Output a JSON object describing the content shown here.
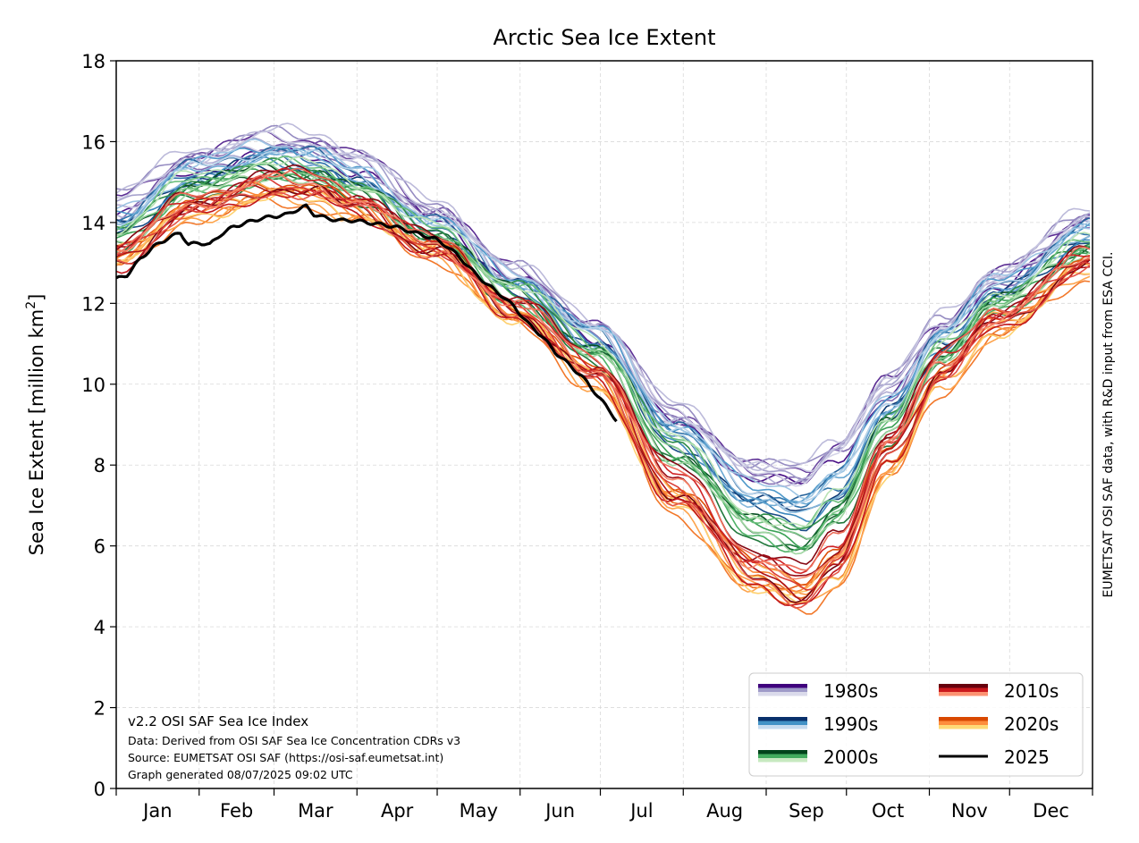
{
  "chart_data": {
    "type": "line",
    "title": "Arctic Sea Ice Extent",
    "ylabel_main": "Sea Ice Extent [million km",
    "ylabel_sup": "2",
    "ylabel_close": "]",
    "xlabel": "",
    "ylim": [
      0,
      18
    ],
    "xlim": [
      1,
      366
    ],
    "yticks": [
      0,
      2,
      4,
      6,
      8,
      10,
      12,
      14,
      16,
      18
    ],
    "months": [
      "Jan",
      "Feb",
      "Mar",
      "Apr",
      "May",
      "Jun",
      "Jul",
      "Aug",
      "Sep",
      "Oct",
      "Nov",
      "Dec"
    ],
    "month_starts": [
      1,
      32,
      60,
      91,
      121,
      152,
      182,
      213,
      244,
      274,
      305,
      335
    ],
    "grid": true,
    "legend_position": "lower-right",
    "legend": [
      {
        "label": "1980s",
        "colors": [
          "#3f007d",
          "#9e9ac8",
          "#dadaeb"
        ]
      },
      {
        "label": "2010s",
        "colors": [
          "#67000d",
          "#cb181d",
          "#fc9272"
        ]
      },
      {
        "label": "1990s",
        "colors": [
          "#08306b",
          "#4292c6",
          "#c6dbef"
        ]
      },
      {
        "label": "2020s",
        "colors": [
          "#d94801",
          "#fd8d3c",
          "#fed976"
        ]
      },
      {
        "label": "2000s",
        "colors": [
          "#00441b",
          "#41ab5d",
          "#c7e9c0"
        ]
      },
      {
        "label": "2025",
        "colors": [
          "#000000"
        ]
      }
    ],
    "decade_profiles": {
      "x": [
        1,
        30,
        60,
        75,
        90,
        120,
        150,
        180,
        210,
        240,
        258,
        270,
        290,
        310,
        330,
        366
      ],
      "1980s_top": [
        14.9,
        15.9,
        16.4,
        16.3,
        15.9,
        14.6,
        13.0,
        11.7,
        9.6,
        8.1,
        8.1,
        8.7,
        10.3,
        11.8,
        12.9,
        14.4
      ],
      "1980s_bottom": [
        14.0,
        15.2,
        15.6,
        15.5,
        15.2,
        14.0,
        12.5,
        11.1,
        8.9,
        7.6,
        7.4,
        8.1,
        9.6,
        11.2,
        12.4,
        13.9
      ],
      "1990s_top": [
        14.4,
        15.6,
        16.1,
        15.9,
        15.4,
        14.2,
        12.8,
        11.5,
        9.2,
        7.6,
        7.5,
        8.0,
        9.8,
        11.5,
        12.7,
        14.1
      ],
      "1990s_bottom": [
        13.6,
        14.9,
        15.3,
        15.2,
        14.8,
        13.6,
        12.2,
        10.8,
        8.4,
        6.8,
        6.4,
        7.0,
        9.0,
        10.8,
        12.0,
        13.5
      ],
      "2000s_top": [
        14.0,
        15.3,
        15.6,
        15.5,
        15.1,
        14.0,
        12.6,
        11.2,
        8.8,
        6.9,
        6.6,
        7.4,
        9.4,
        11.1,
        12.3,
        13.7
      ],
      "2000s_bottom": [
        13.2,
        14.5,
        15.0,
        14.9,
        14.5,
        13.4,
        11.9,
        10.4,
        7.9,
        6.1,
        5.7,
        6.3,
        8.5,
        10.4,
        11.7,
        13.1
      ],
      "2010s_top": [
        13.6,
        14.8,
        15.4,
        15.3,
        14.9,
        13.7,
        12.2,
        10.8,
        8.1,
        6.1,
        5.7,
        6.5,
        9.0,
        10.9,
        12.0,
        13.4
      ],
      "2010s_bottom": [
        12.8,
        14.1,
        14.6,
        14.5,
        14.1,
        13.1,
        11.6,
        9.9,
        6.9,
        4.9,
        4.3,
        5.0,
        8.0,
        10.0,
        11.3,
        12.8
      ],
      "2020s_top": [
        13.5,
        14.6,
        15.1,
        15.0,
        14.6,
        13.6,
        12.0,
        10.5,
        7.7,
        5.7,
        5.4,
        6.1,
        8.6,
        10.6,
        11.8,
        13.3
      ],
      "2020s_bottom": [
        12.8,
        14.0,
        14.4,
        14.3,
        14.0,
        13.0,
        11.4,
        9.8,
        6.6,
        4.7,
        4.2,
        4.8,
        7.5,
        9.7,
        11.1,
        12.5
      ]
    },
    "series_2025": {
      "x": [
        1,
        5,
        10,
        15,
        20,
        25,
        28,
        32,
        36,
        40,
        45,
        50,
        55,
        60,
        65,
        68,
        72,
        75,
        80,
        85,
        90,
        95,
        100,
        105,
        110,
        115,
        120,
        125,
        130,
        135,
        140,
        145,
        150,
        155,
        160,
        165,
        170,
        175,
        180,
        183,
        186,
        188
      ],
      "y": [
        12.6,
        12.7,
        13.1,
        13.4,
        13.6,
        13.75,
        13.45,
        13.5,
        13.45,
        13.7,
        13.9,
        14.0,
        14.1,
        14.15,
        14.2,
        14.3,
        14.4,
        14.2,
        14.1,
        14.05,
        14.05,
        14.0,
        13.95,
        13.9,
        13.8,
        13.7,
        13.6,
        13.4,
        13.1,
        12.75,
        12.45,
        12.2,
        11.9,
        11.5,
        11.2,
        10.8,
        10.5,
        10.2,
        9.8,
        9.55,
        9.3,
        9.1
      ]
    }
  },
  "source_note": {
    "line1": "v2.2 OSI SAF Sea Ice Index",
    "line2": "Data: Derived from OSI SAF Sea Ice Concentration CDRs v3",
    "line3": "Source: EUMETSAT OSI SAF (https://osi-saf.eumetsat.int)",
    "line4": "Graph generated 08/07/2025 09:02 UTC"
  },
  "side_credit": "EUMETSAT OSI SAF data, with R&D input from ESA CCI."
}
